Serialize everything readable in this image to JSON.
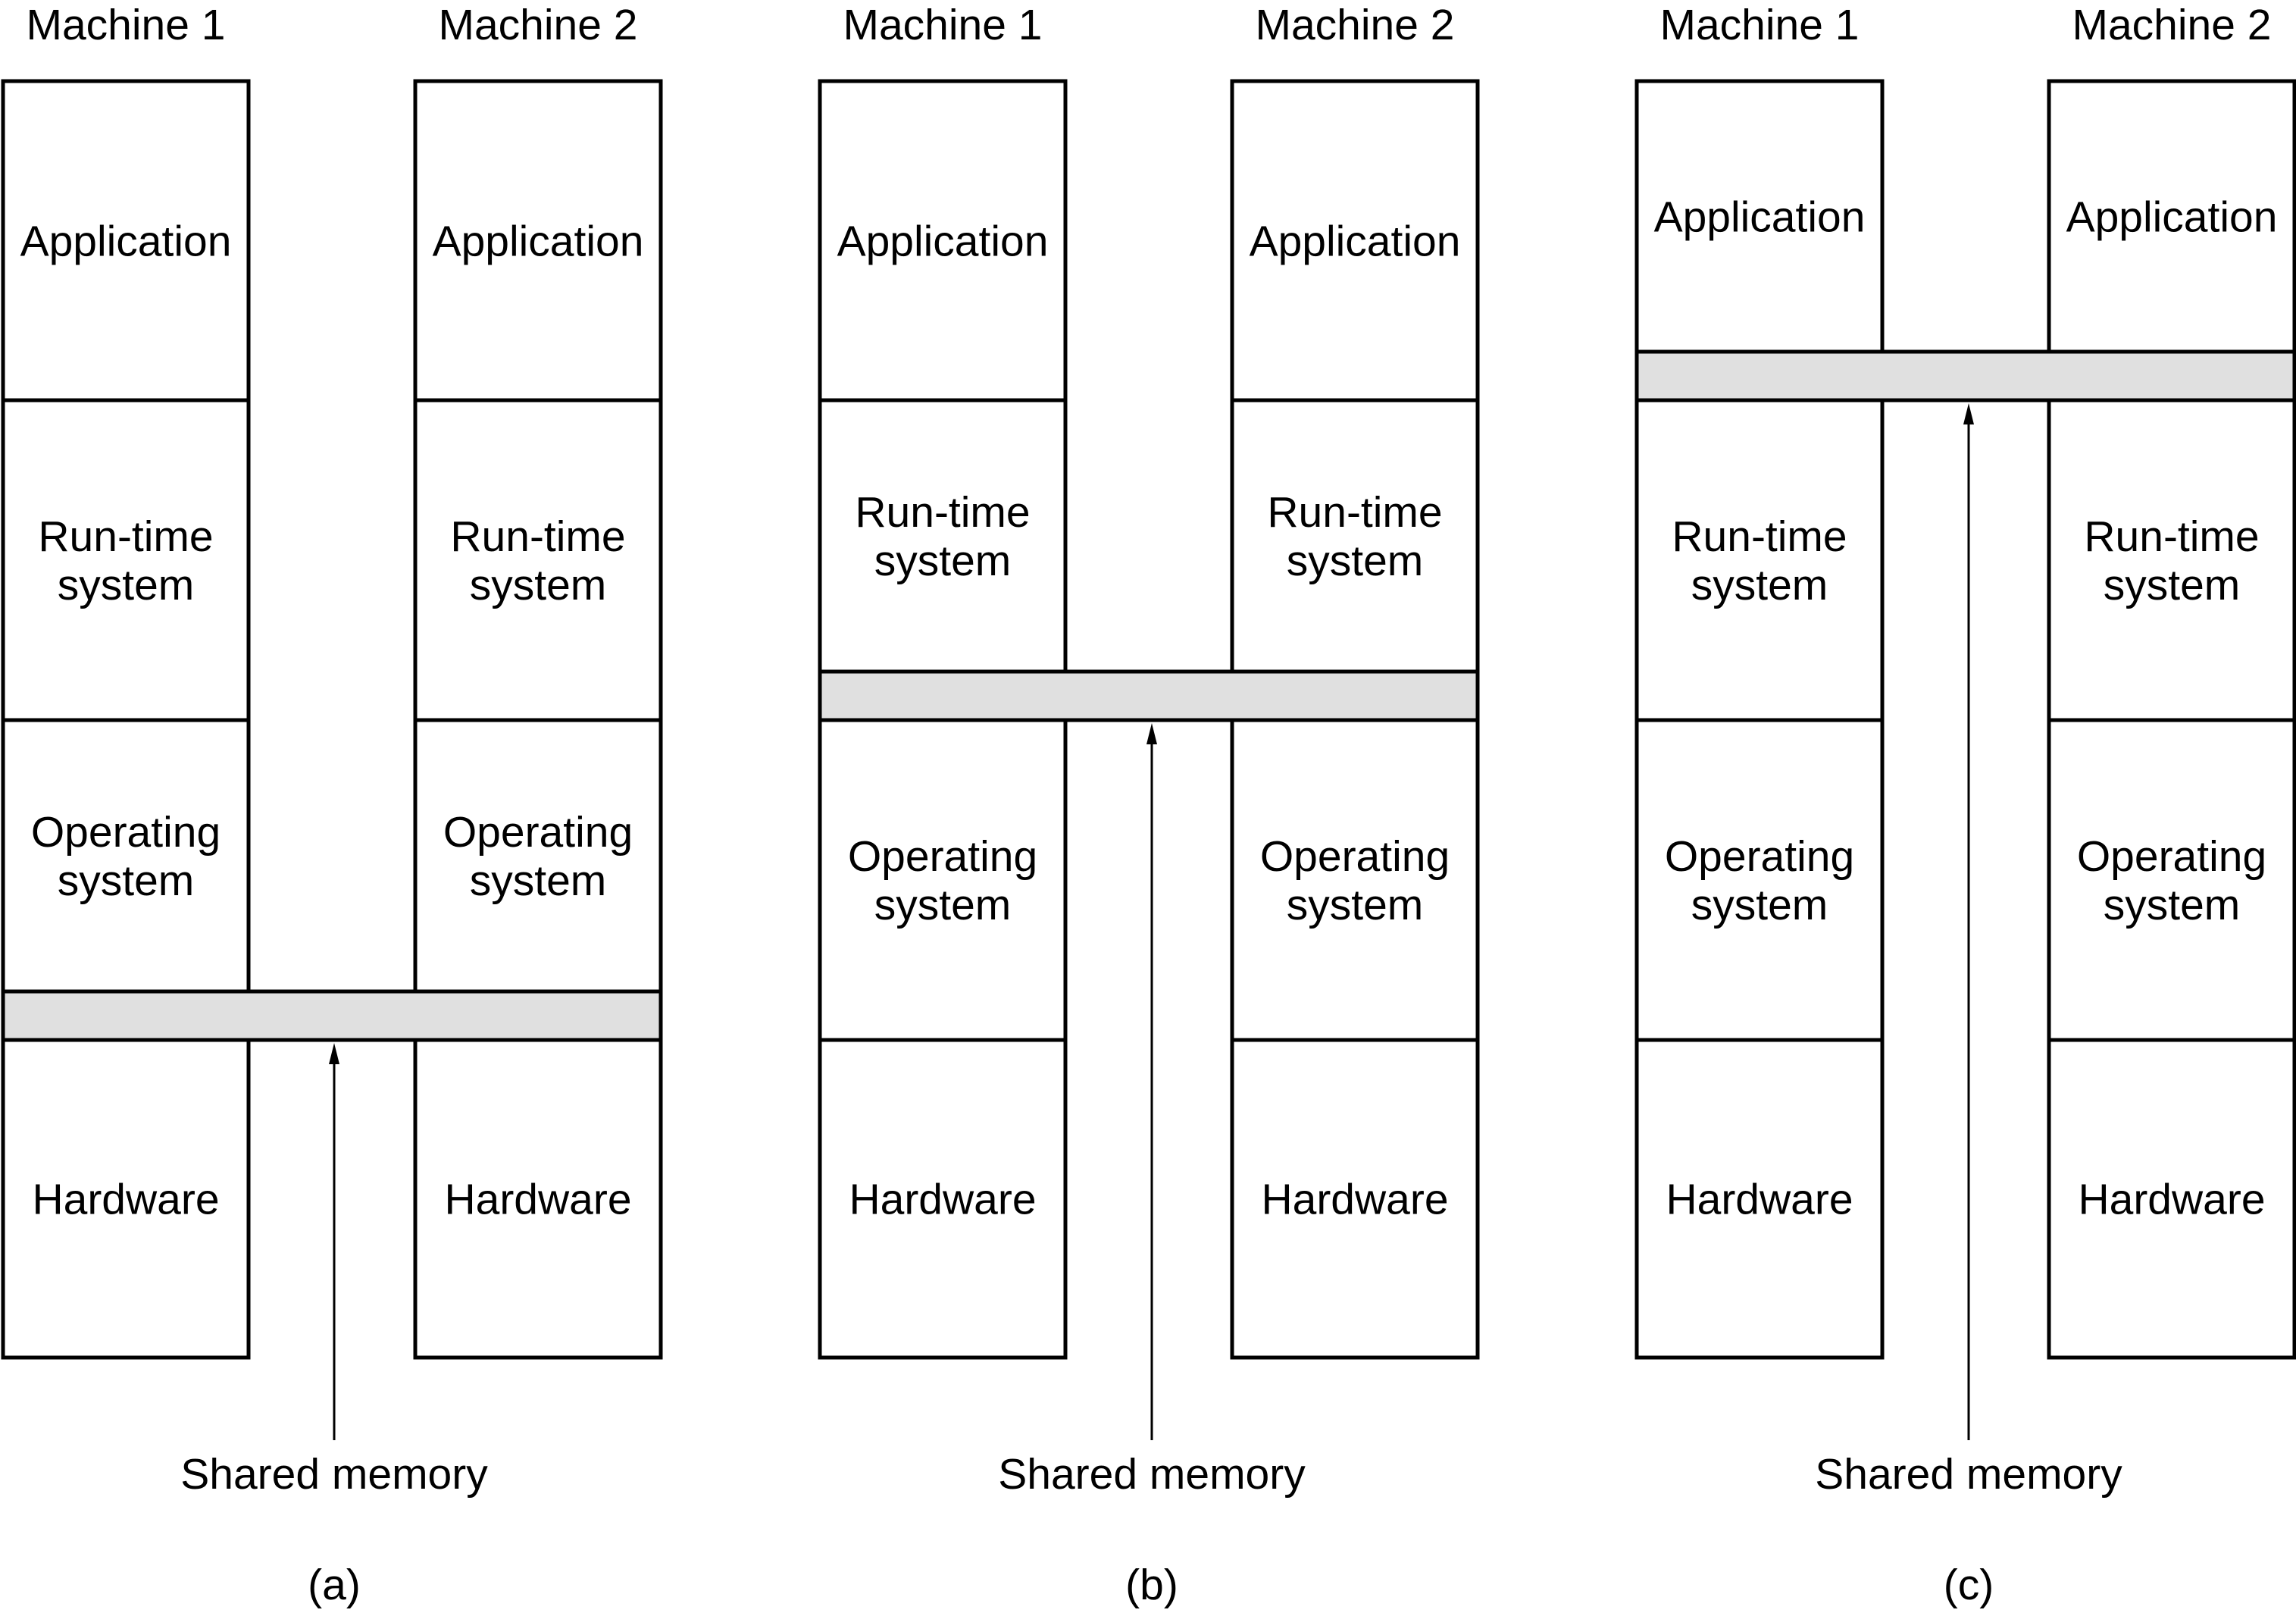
{
  "colors": {
    "stroke": "#000000",
    "background": "#ffffff",
    "shared_band": "#e0e0e0"
  },
  "panels": [
    {
      "caption": "(a)",
      "shared_label": "Shared memory",
      "shared_layer_between": [
        "Operating system",
        "Hardware"
      ],
      "machines": [
        {
          "title": "Machine 1",
          "layers": [
            [
              "Application"
            ],
            [
              "Run-time",
              "system"
            ],
            [
              "Operating",
              "system"
            ],
            [
              "Hardware"
            ]
          ]
        },
        {
          "title": "Machine 2",
          "layers": [
            [
              "Application"
            ],
            [
              "Run-time",
              "system"
            ],
            [
              "Operating",
              "system"
            ],
            [
              "Hardware"
            ]
          ]
        }
      ]
    },
    {
      "caption": "(b)",
      "shared_label": "Shared memory",
      "shared_layer_between": [
        "Run-time system",
        "Operating system"
      ],
      "machines": [
        {
          "title": "Machine 1",
          "layers": [
            [
              "Application"
            ],
            [
              "Run-time",
              "system"
            ],
            [
              "Operating",
              "system"
            ],
            [
              "Hardware"
            ]
          ]
        },
        {
          "title": "Machine 2",
          "layers": [
            [
              "Application"
            ],
            [
              "Run-time",
              "system"
            ],
            [
              "Operating",
              "system"
            ],
            [
              "Hardware"
            ]
          ]
        }
      ]
    },
    {
      "caption": "(c)",
      "shared_label": "Shared memory",
      "shared_layer_between": [
        "Application",
        "Run-time system"
      ],
      "machines": [
        {
          "title": "Machine 1",
          "layers": [
            [
              "Application"
            ],
            [
              "Run-time",
              "system"
            ],
            [
              "Operating",
              "system"
            ],
            [
              "Hardware"
            ]
          ]
        },
        {
          "title": "Machine 2",
          "layers": [
            [
              "Application"
            ],
            [
              "Run-time",
              "system"
            ],
            [
              "Operating",
              "system"
            ],
            [
              "Hardware"
            ]
          ]
        }
      ]
    }
  ]
}
